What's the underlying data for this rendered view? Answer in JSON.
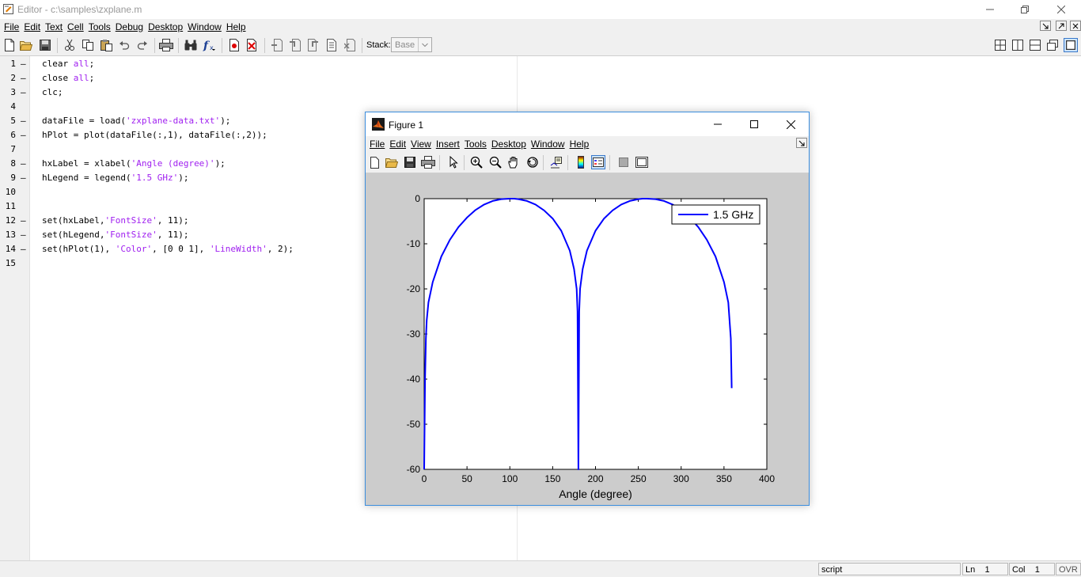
{
  "window": {
    "title": "Editor - c:\\samples\\zxplane.m"
  },
  "menubar": {
    "items": [
      "File",
      "Edit",
      "Text",
      "Cell",
      "Tools",
      "Debug",
      "Desktop",
      "Window",
      "Help"
    ]
  },
  "toolbar": {
    "stack_label": "Stack:",
    "stack_value": "Base",
    "icons": [
      "new-file-icon",
      "open-folder-icon",
      "save-icon",
      "cut-icon",
      "copy-icon",
      "paste-icon",
      "undo-icon",
      "redo-icon",
      "print-icon",
      "find-icon",
      "function-icon",
      "set-breakpoint-icon",
      "clear-breakpoint-icon",
      "step-icon",
      "step-in-icon",
      "step-out-icon",
      "continue-icon",
      "exit-debug-icon"
    ]
  },
  "editor": {
    "lines": [
      {
        "n": "1",
        "dash": "–",
        "parts": [
          {
            "t": "clear "
          },
          {
            "t": "all",
            "s": 1
          },
          {
            "t": ";"
          }
        ]
      },
      {
        "n": "2",
        "dash": "–",
        "parts": [
          {
            "t": "close "
          },
          {
            "t": "all",
            "s": 1
          },
          {
            "t": ";"
          }
        ]
      },
      {
        "n": "3",
        "dash": "–",
        "parts": [
          {
            "t": "clc;"
          }
        ]
      },
      {
        "n": "4",
        "dash": "",
        "parts": []
      },
      {
        "n": "5",
        "dash": "–",
        "parts": [
          {
            "t": "dataFile = load("
          },
          {
            "t": "'zxplane-data.txt'",
            "s": 1
          },
          {
            "t": ");"
          }
        ]
      },
      {
        "n": "6",
        "dash": "–",
        "parts": [
          {
            "t": "hPlot = plot(dataFile(:,1), dataFile(:,2));"
          }
        ]
      },
      {
        "n": "7",
        "dash": "",
        "parts": []
      },
      {
        "n": "8",
        "dash": "–",
        "parts": [
          {
            "t": "hxLabel = xlabel("
          },
          {
            "t": "'Angle (degree)'",
            "s": 1
          },
          {
            "t": ");"
          }
        ]
      },
      {
        "n": "9",
        "dash": "–",
        "parts": [
          {
            "t": "hLegend = legend("
          },
          {
            "t": "'1.5 GHz'",
            "s": 1
          },
          {
            "t": ");"
          }
        ]
      },
      {
        "n": "10",
        "dash": "",
        "parts": []
      },
      {
        "n": "11",
        "dash": "",
        "parts": []
      },
      {
        "n": "12",
        "dash": "–",
        "parts": [
          {
            "t": "set(hxLabel,"
          },
          {
            "t": "'FontSize'",
            "s": 1
          },
          {
            "t": ", 11);"
          }
        ]
      },
      {
        "n": "13",
        "dash": "–",
        "parts": [
          {
            "t": "set(hLegend,"
          },
          {
            "t": "'FontSize'",
            "s": 1
          },
          {
            "t": ", 11);"
          }
        ]
      },
      {
        "n": "14",
        "dash": "–",
        "parts": [
          {
            "t": "set(hPlot(1), "
          },
          {
            "t": "'Color'",
            "s": 1
          },
          {
            "t": ", [0 0 1], "
          },
          {
            "t": "'LineWidth'",
            "s": 1
          },
          {
            "t": ", 2);"
          }
        ]
      },
      {
        "n": "15",
        "dash": "",
        "parts": []
      }
    ]
  },
  "statusbar": {
    "mode": "script",
    "ln_label": "Ln",
    "ln": "1",
    "col_label": "Col",
    "col": "1",
    "ovr": "OVR"
  },
  "figure": {
    "title": "Figure 1",
    "menubar": [
      "File",
      "Edit",
      "View",
      "Insert",
      "Tools",
      "Desktop",
      "Window",
      "Help"
    ],
    "toolbar_icons": [
      "new-figure-icon",
      "open-file-icon",
      "save-figure-icon",
      "print-figure-icon",
      "edit-plot-icon",
      "zoom-in-icon",
      "zoom-out-icon",
      "pan-icon",
      "rotate-3d-icon",
      "data-cursor-icon",
      "insert-colorbar-icon",
      "insert-legend-icon",
      "hide-plot-tools-icon",
      "show-plot-tools-icon"
    ]
  },
  "chart_data": {
    "type": "line",
    "title": "",
    "xlabel": "Angle (degree)",
    "ylabel": "",
    "xlim": [
      0,
      400
    ],
    "ylim": [
      -60,
      0
    ],
    "xticks": [
      0,
      50,
      100,
      150,
      200,
      250,
      300,
      350,
      400
    ],
    "yticks": [
      0,
      -10,
      -20,
      -30,
      -40,
      -50,
      -60
    ],
    "grid": false,
    "legend_position": "top-right",
    "series": [
      {
        "name": "1.5 GHz",
        "color": "#0000ff",
        "x": [
          0,
          1,
          2,
          3,
          5,
          10,
          20,
          30,
          40,
          50,
          60,
          70,
          80,
          90,
          100,
          105,
          110,
          120,
          130,
          140,
          150,
          160,
          170,
          175,
          178,
          179,
          180,
          181,
          182,
          185,
          190,
          200,
          210,
          220,
          230,
          240,
          250,
          255,
          260,
          270,
          280,
          290,
          300,
          310,
          320,
          330,
          340,
          350,
          355,
          358,
          359
        ],
        "y": [
          -60,
          -40,
          -31,
          -27,
          -23,
          -18.5,
          -12.8,
          -9.1,
          -6.3,
          -4.2,
          -2.5,
          -1.3,
          -0.5,
          -0.1,
          0,
          0,
          -0.1,
          -0.5,
          -1.3,
          -2.6,
          -4.4,
          -7.1,
          -11.5,
          -15.6,
          -20,
          -25,
          -60,
          -25,
          -20,
          -15.6,
          -11.5,
          -7.1,
          -4.4,
          -2.6,
          -1.3,
          -0.5,
          -0.1,
          0,
          0,
          -0.1,
          -0.5,
          -1.3,
          -2.5,
          -4.2,
          -6.3,
          -9.1,
          -12.8,
          -18.5,
          -23,
          -31,
          -42
        ]
      }
    ]
  }
}
